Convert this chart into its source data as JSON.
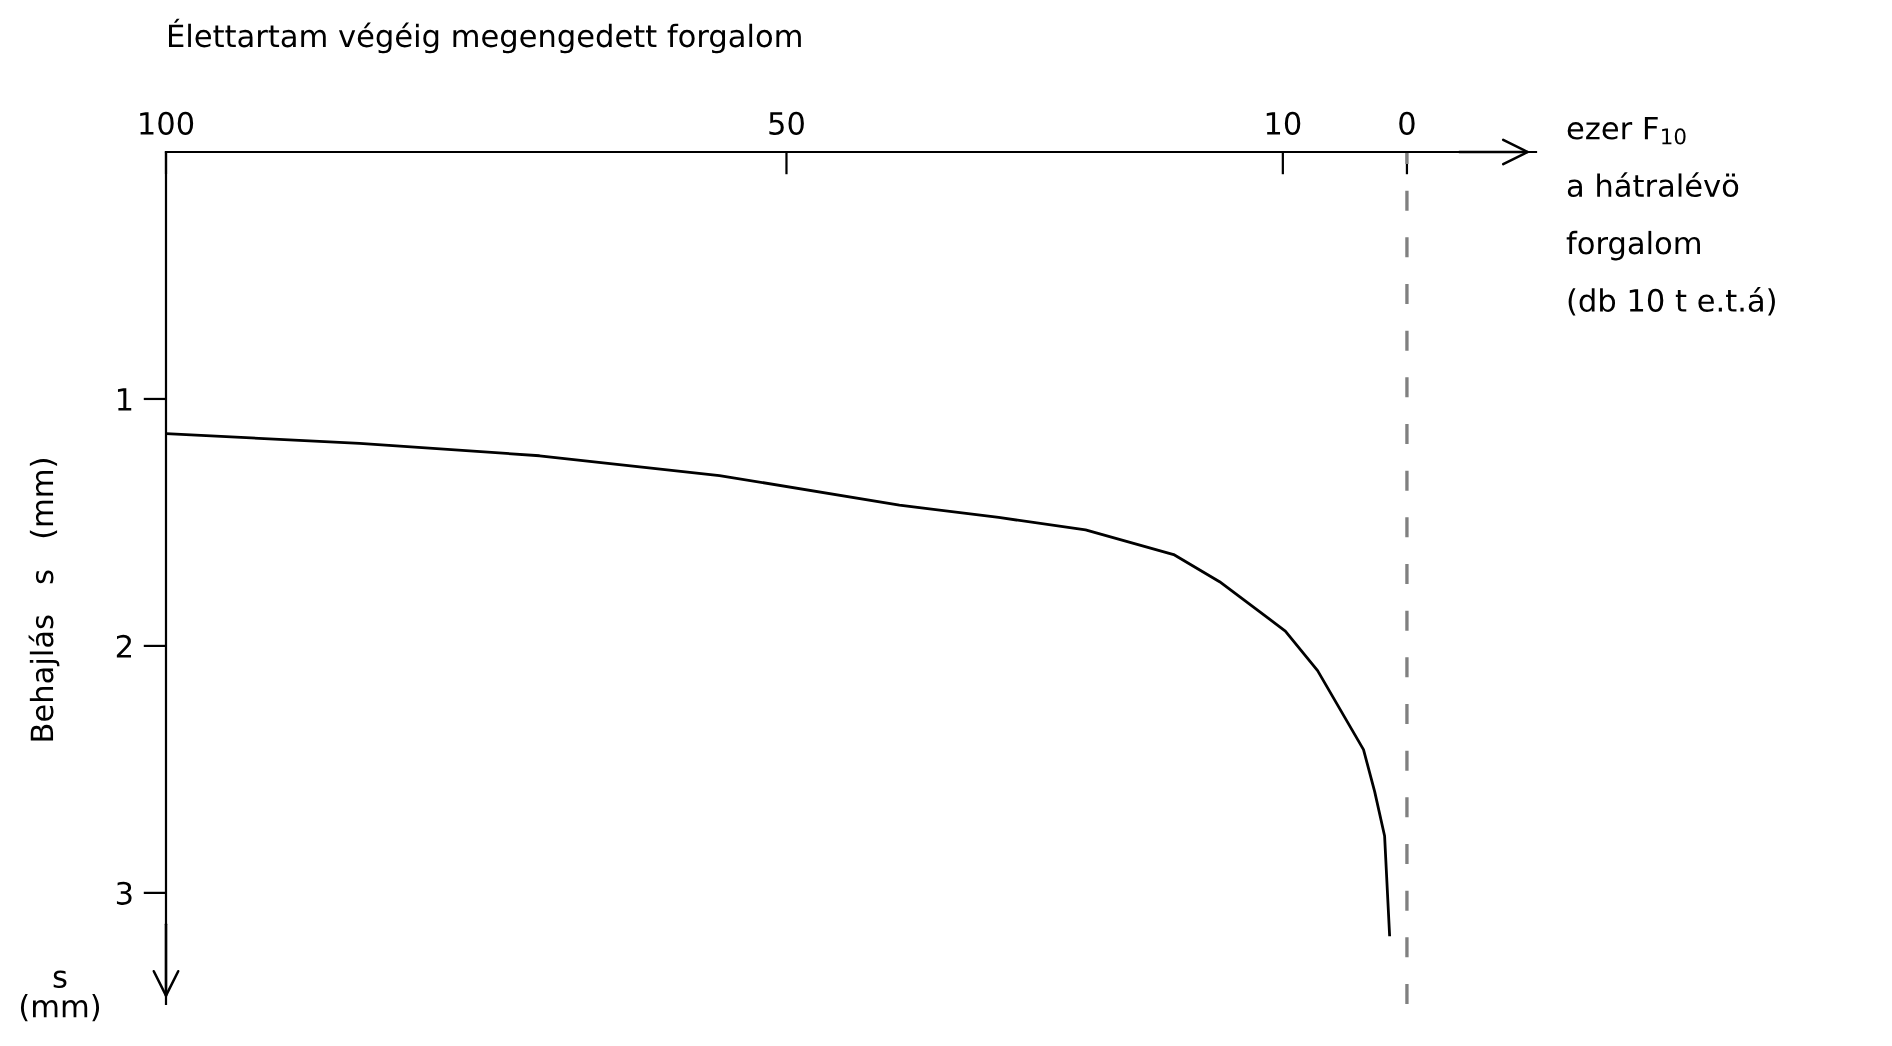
{
  "chart_data": {
    "type": "line",
    "title": "Élettartam végéig megengedett forgalom",
    "xlabel": "ezer F$_{10}$\na hátralévö\nforgalom\n(db 10 t e.t.á)",
    "ylabel": "Behajlás   s   (mm)",
    "annotations": [
      "s\n(mm)"
    ],
    "x": [
      100,
      84.4,
      69.9,
      55.4,
      40.9,
      32.9,
      25.9,
      18.8,
      15.1,
      9.8,
      7.2,
      3.5,
      2.6,
      1.8,
      1.4
    ],
    "series": [
      {
        "color": "#000000",
        "values": [
          1.14,
          1.18,
          1.23,
          1.31,
          1.43,
          1.48,
          1.53,
          1.63,
          1.74,
          1.94,
          2.1,
          2.42,
          2.59,
          2.77,
          3.17
        ]
      }
    ],
    "xlim": [
      100,
      -10.4
    ],
    "xticks": [
      100,
      50,
      10,
      0
    ],
    "ylim": [
      3.45,
      0
    ],
    "yticks": [
      1,
      2,
      3
    ],
    "ref_lines": [
      {
        "axis": "x",
        "value": 0,
        "color": "#808080",
        "line_style": "dashed"
      }
    ],
    "grid": false,
    "legend": false,
    "marker": "none",
    "line_style": "solid"
  }
}
